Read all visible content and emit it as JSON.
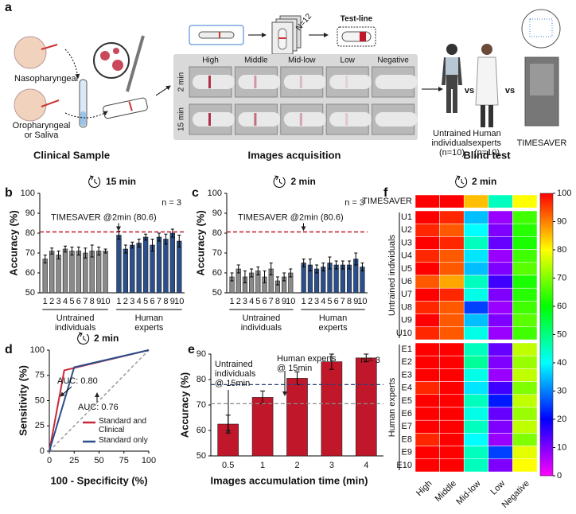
{
  "panel_a": {
    "letter": "a",
    "sample_sites": [
      [
        "Nasopharyngeal"
      ],
      [
        "Oropharyngeal",
        "or Saliva"
      ]
    ],
    "stack_label": "N=12",
    "test_line": "Test-line",
    "columns": [
      "High",
      "Middle",
      "Mid-low",
      "Low",
      "Negative"
    ],
    "rows": [
      "2 min",
      "15 min"
    ],
    "participants": [
      [
        "Untrained",
        "individuals",
        "(n=10)"
      ],
      [
        "Human",
        "experts",
        "(n=10)"
      ],
      [
        "TIMESAVER"
      ]
    ],
    "vs": [
      "vs",
      "vs"
    ],
    "sections": [
      "Clinical Sample",
      "Images acquisition",
      "Blind test"
    ]
  },
  "chart_data": [
    {
      "type": "bar",
      "panel": "b",
      "title": "15 min",
      "ylabel": "Accuracy (%)",
      "n_label": "n = 3",
      "ylim": [
        50,
        100
      ],
      "yticks": [
        50,
        60,
        70,
        80,
        90,
        100
      ],
      "threshold": {
        "value": 80.6,
        "label": "TIMESAVER @2min (80.6)",
        "color": "#c0182a"
      },
      "groups": [
        {
          "label": [
            "Untrained",
            "individuals"
          ],
          "color": "#8a8a8a",
          "categories": [
            "1",
            "2",
            "3",
            "4",
            "5",
            "6",
            "7",
            "8",
            "9",
            "10"
          ],
          "values": [
            67,
            71,
            69,
            72,
            71,
            71,
            70,
            71,
            71,
            71
          ],
          "errors": [
            2,
            1.5,
            2,
            1.5,
            2,
            2,
            2.5,
            3,
            2,
            1
          ]
        },
        {
          "label": [
            "Human",
            "experts"
          ],
          "color": "#2b4f8a",
          "categories": [
            "1",
            "2",
            "3",
            "4",
            "5",
            "6",
            "7",
            "8",
            "9",
            "10"
          ],
          "values": [
            79,
            72,
            74,
            75,
            78,
            74,
            78,
            77,
            80,
            76
          ],
          "errors": [
            2,
            2,
            1.5,
            2,
            1.5,
            3,
            2,
            2.5,
            2,
            3
          ]
        }
      ]
    },
    {
      "type": "bar",
      "panel": "c",
      "title": "2 min",
      "ylabel": "Accuracy (%)",
      "n_label": "n = 3",
      "ylim": [
        50,
        100
      ],
      "yticks": [
        50,
        60,
        70,
        80,
        90,
        100
      ],
      "threshold": {
        "value": 80.6,
        "label": "TIMESAVER @2min (80.6)",
        "color": "#c0182a"
      },
      "groups": [
        {
          "label": [
            "Untrained",
            "individuals"
          ],
          "color": "#8a8a8a",
          "categories": [
            "1",
            "2",
            "3",
            "4",
            "5",
            "6",
            "7",
            "8",
            "9",
            "10"
          ],
          "values": [
            58,
            62,
            58,
            60,
            61,
            58,
            62,
            56,
            58,
            60
          ],
          "errors": [
            2,
            2,
            3,
            2,
            2,
            3,
            3,
            2,
            2,
            2
          ]
        },
        {
          "label": [
            "Human",
            "experts"
          ],
          "color": "#2b4f8a",
          "categories": [
            "1",
            "2",
            "3",
            "4",
            "5",
            "6",
            "7",
            "8",
            "9",
            "10"
          ],
          "values": [
            65,
            64,
            62,
            63,
            65,
            64,
            64,
            64,
            67,
            63
          ],
          "errors": [
            2,
            3,
            2,
            2,
            3,
            2,
            2,
            2,
            3,
            2
          ]
        }
      ]
    },
    {
      "type": "line",
      "panel": "d",
      "title": "2 min",
      "xlabel": "100 - Specificity (%)",
      "ylabel": "Sensitivity (%)",
      "xlim": [
        0,
        100
      ],
      "ylim": [
        0,
        100
      ],
      "xticks": [
        0,
        25,
        50,
        75,
        100
      ],
      "yticks": [
        0,
        25,
        50,
        75,
        100
      ],
      "annotations": [
        "AUC: 0.80",
        "AUC: 0.76"
      ],
      "series": [
        {
          "name": "Standard and Clinical",
          "color": "#c8283c",
          "x": [
            0,
            15,
            100
          ],
          "values": [
            0,
            80,
            100
          ]
        },
        {
          "name": "Standard only",
          "color": "#2b4f8a",
          "x": [
            0,
            25,
            100
          ],
          "values": [
            0,
            83,
            100
          ]
        }
      ]
    },
    {
      "type": "bar",
      "panel": "e",
      "xlabel": "Images accumulation time (min)",
      "ylabel": "Accuracy (%)",
      "n_label": "n = 3",
      "ylim": [
        50,
        90
      ],
      "yticks": [
        50,
        60,
        70,
        80,
        90
      ],
      "color": "#c0182a",
      "categories": [
        "0.5",
        "1",
        "2",
        "3",
        "4"
      ],
      "values": [
        62.5,
        73,
        80.5,
        87,
        88.5
      ],
      "errors": [
        3.5,
        2.5,
        2.5,
        3,
        1.5
      ],
      "reference_lines": [
        {
          "value": 78,
          "color": "#2a3f7a"
        },
        {
          "value": 70.5,
          "color": "#8a8a8a"
        }
      ],
      "annotations": [
        [
          "Untrained",
          "individuals",
          "@ 15min"
        ],
        [
          "Human experts",
          "@ 15min"
        ]
      ]
    },
    {
      "type": "heatmap",
      "panel": "f",
      "title": "2 min",
      "colormap": "hsv",
      "columns": [
        "High",
        "Middle",
        "Mid-low",
        "Low",
        "Negative"
      ],
      "zlim": [
        0,
        100
      ],
      "zticks": [
        0,
        10,
        20,
        30,
        40,
        50,
        60,
        70,
        80,
        90,
        100
      ],
      "reference_row": {
        "label": "TIMESAVER",
        "values": [
          100,
          100,
          85,
          45,
          80
        ]
      },
      "groups": [
        {
          "label": "Untrained individuals",
          "rows": [
            {
              "label": "U1",
              "values": [
                100,
                97,
                35,
                8,
                65
              ]
            },
            {
              "label": "U2",
              "values": [
                97,
                93,
                40,
                10,
                63
              ]
            },
            {
              "label": "U3",
              "values": [
                100,
                97,
                45,
                12,
                62
              ]
            },
            {
              "label": "U4",
              "values": [
                97,
                93,
                38,
                8,
                65
              ]
            },
            {
              "label": "U5",
              "values": [
                100,
                93,
                35,
                10,
                67
              ]
            },
            {
              "label": "U6",
              "values": [
                93,
                87,
                45,
                15,
                62
              ]
            },
            {
              "label": "U7",
              "values": [
                100,
                97,
                42,
                10,
                63
              ]
            },
            {
              "label": "U8",
              "values": [
                97,
                93,
                25,
                8,
                65
              ]
            },
            {
              "label": "U9",
              "values": [
                100,
                93,
                35,
                10,
                67
              ]
            },
            {
              "label": "U10",
              "values": [
                97,
                93,
                42,
                8,
                65
              ]
            }
          ]
        },
        {
          "label": "Human experts",
          "rows": [
            {
              "label": "E1",
              "values": [
                100,
                100,
                45,
                12,
                75
              ]
            },
            {
              "label": "E2",
              "values": [
                100,
                100,
                48,
                10,
                72
              ]
            },
            {
              "label": "E3",
              "values": [
                100,
                100,
                42,
                8,
                75
              ]
            },
            {
              "label": "E4",
              "values": [
                97,
                100,
                38,
                15,
                70
              ]
            },
            {
              "label": "E5",
              "values": [
                100,
                100,
                45,
                22,
                75
              ]
            },
            {
              "label": "E6",
              "values": [
                100,
                100,
                42,
                12,
                72
              ]
            },
            {
              "label": "E7",
              "values": [
                100,
                100,
                45,
                10,
                75
              ]
            },
            {
              "label": "E8",
              "values": [
                97,
                100,
                40,
                8,
                70
              ]
            },
            {
              "label": "E9",
              "values": [
                100,
                100,
                45,
                25,
                78
              ]
            },
            {
              "label": "E10",
              "values": [
                100,
                100,
                45,
                10,
                80
              ]
            }
          ]
        }
      ]
    }
  ]
}
